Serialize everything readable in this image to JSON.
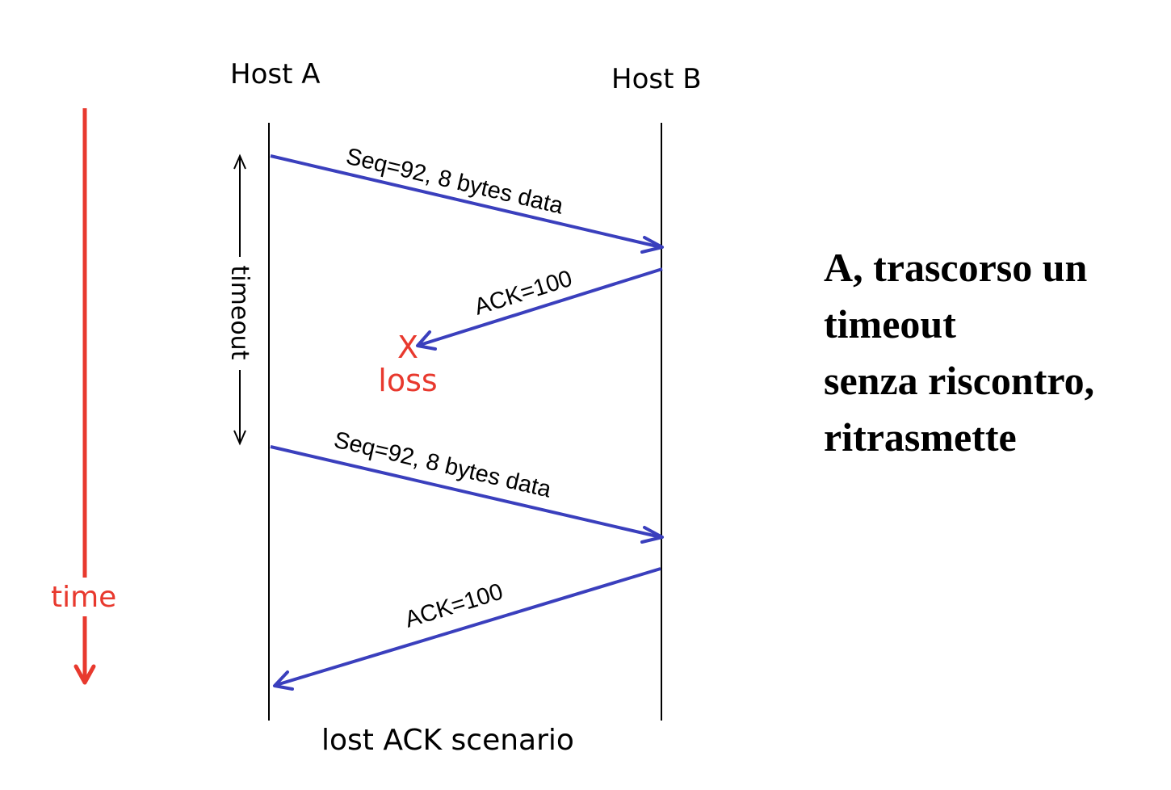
{
  "diagram": {
    "host_a": "Host A",
    "host_b": "Host B",
    "messages": [
      {
        "label": "Seq=92, 8 bytes data"
      },
      {
        "label": "ACK=100"
      },
      {
        "label": "Seq=92, 8 bytes data"
      },
      {
        "label": "ACK=100"
      }
    ],
    "loss_marker": "X",
    "loss_label": "loss",
    "timeout_label": "timeout",
    "time_label": "time",
    "caption": "lost ACK scenario"
  },
  "side_note": {
    "lines": [
      "A, trascorso un",
      "timeout",
      "senza riscontro,",
      "ritrasmette"
    ]
  },
  "colors": {
    "arrow": "#3a3fbd",
    "time_axis": "#e8392e",
    "loss": "#e8392e",
    "lifeline": "#000000"
  }
}
